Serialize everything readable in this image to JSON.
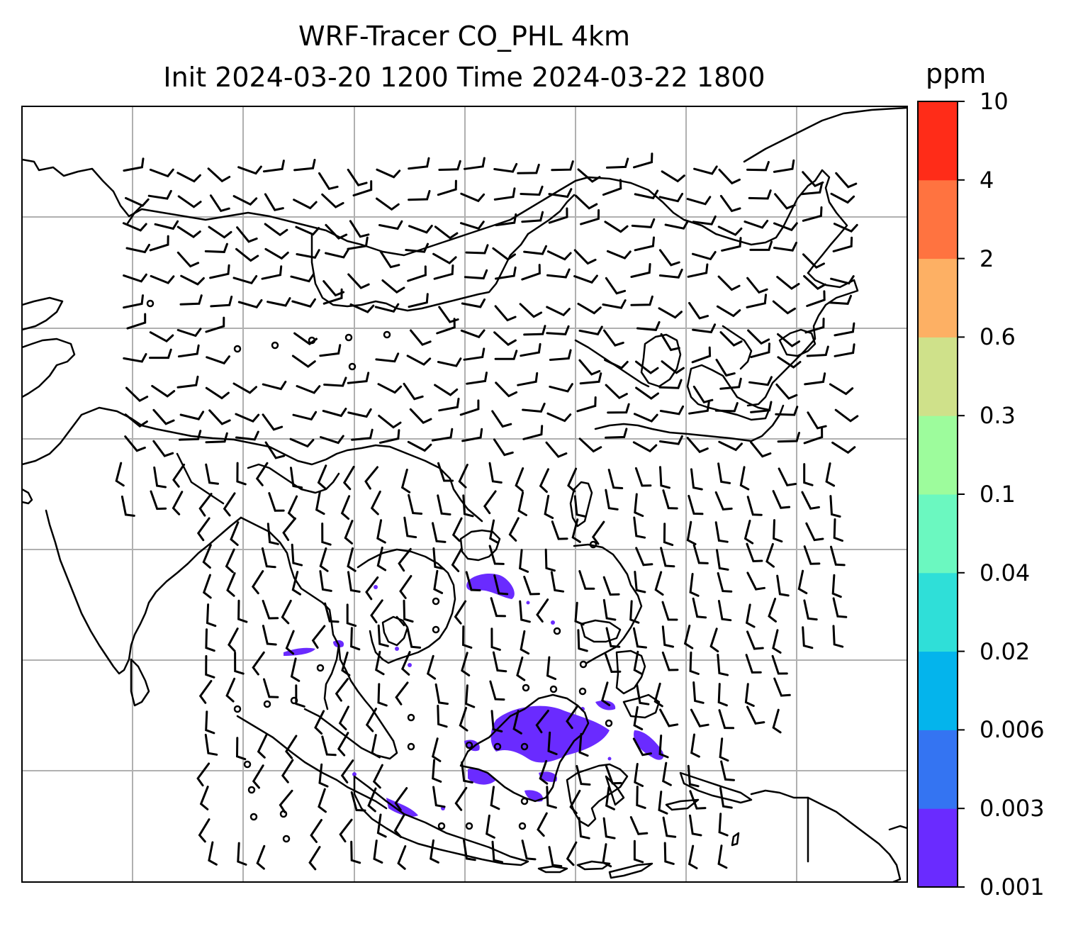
{
  "title_line1": "WRF-Tracer CO_PHL 4km",
  "title_line2": "Init 2024-03-20 1200 Time 2024-03-22 1800",
  "colorbar": {
    "unit": "ppm",
    "levels": [
      "0.001",
      "0.003",
      "0.006",
      "0.02",
      "0.04",
      "0.1",
      "0.3",
      "0.6",
      "2",
      "4",
      "10"
    ],
    "colors": [
      "#6a2bff",
      "#3474f2",
      "#04b4ec",
      "#2fdfd8",
      "#6bf8c0",
      "#9dfc9c",
      "#cfe18a",
      "#fdb064",
      "#ff7340",
      "#ff2c18"
    ]
  },
  "map": {
    "region": "Southeast Asia",
    "features": [
      "coastlines",
      "gridlines",
      "wind-barbs",
      "co-tracer-concentration"
    ],
    "gridline_color": "#b0b0b0",
    "tracer_color": "#6a2bff"
  }
}
